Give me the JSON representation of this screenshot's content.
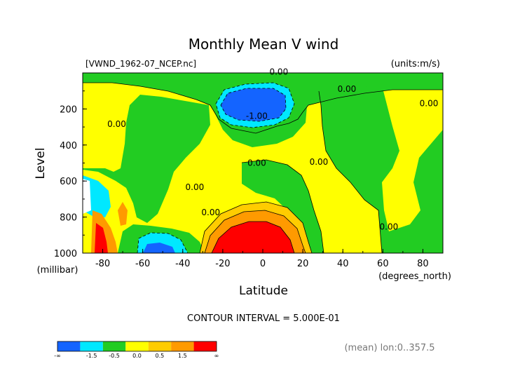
{
  "chart_data": {
    "type": "heatmap",
    "title": "Monthly Mean V wind",
    "dataset": "[VWND_1962-07_NCEP.nc]",
    "units": "(units:m/s)",
    "xlabel": "Latitude",
    "x_units": "(degrees_north)",
    "ylabel": "Level",
    "y_units": "(millibar)",
    "x_ticks": [
      "-80",
      "-60",
      "-40",
      "-20",
      "0",
      "20",
      "40",
      "60",
      "80"
    ],
    "y_ticks": [
      "200",
      "400",
      "600",
      "800",
      "1000"
    ],
    "xlim": [
      -90,
      90
    ],
    "ylim": [
      1000,
      0
    ],
    "contour_interval": "CONTOUR INTERVAL = 5.000E-01",
    "footnote": "(mean) lon:0..357.5",
    "contour_labels": [
      {
        "text": "0.00",
        "lat": 8,
        "lev": 10
      },
      {
        "text": "0.00",
        "lat": 42,
        "lev": 105
      },
      {
        "text": "0.00",
        "lat": 83,
        "lev": 185
      },
      {
        "text": "0.00",
        "lat": -73,
        "lev": 300
      },
      {
        "text": "-1.00",
        "lat": -3,
        "lev": 255
      },
      {
        "text": "0.00",
        "lat": -3,
        "lev": 515
      },
      {
        "text": "0.00",
        "lat": 28,
        "lev": 510
      },
      {
        "text": "0.00",
        "lat": -34,
        "lev": 650
      },
      {
        "text": "0.00",
        "lat": -26,
        "lev": 790
      },
      {
        "text": "0.00",
        "lat": 63,
        "lev": 870
      }
    ],
    "legend": {
      "colors": [
        "#1464ff",
        "#00e8ff",
        "#22cc22",
        "#ffff00",
        "#ffcc00",
        "#ff9a00",
        "#ff0000"
      ],
      "labels": [
        "-∞",
        "-1.5",
        "-0.5",
        "0.0",
        "0.5",
        "1.5",
        "∞"
      ]
    }
  }
}
